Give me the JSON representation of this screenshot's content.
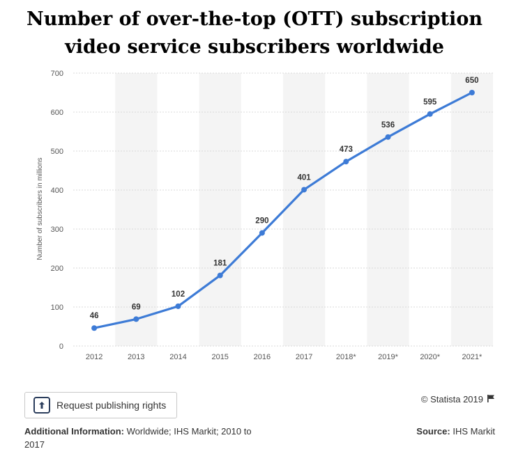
{
  "title": "Number of over-the-top (OTT) subscription video service subscribers worldwide",
  "chart_data": {
    "type": "line",
    "title": "Number of over-the-top (OTT) subscription video service subscribers worldwide",
    "xlabel": "",
    "ylabel": "Number of subscribers in millions",
    "categories": [
      "2012",
      "2013",
      "2014",
      "2015",
      "2016",
      "2017",
      "2018*",
      "2019*",
      "2020*",
      "2021*"
    ],
    "series": [
      {
        "values": [
          46,
          69,
          102,
          181,
          290,
          401,
          473,
          536,
          595,
          650
        ]
      }
    ],
    "ylim": [
      0,
      700
    ],
    "yticks": [
      0,
      100,
      200,
      300,
      400,
      500,
      600,
      700
    ],
    "grid": true,
    "data_labels": true,
    "colors": {
      "line": "#3d7bd6",
      "band": "#f4f4f4"
    }
  },
  "publish": {
    "label": "Request publishing rights",
    "icon": "publish-icon"
  },
  "copyright": {
    "text": "© Statista 2019",
    "icon": "flag-icon"
  },
  "additional": {
    "heading": "Additional Information:",
    "text": "Worldwide; IHS Markit; 2010 to 2017"
  },
  "source": {
    "heading": "Source:",
    "text": "IHS Markit"
  }
}
